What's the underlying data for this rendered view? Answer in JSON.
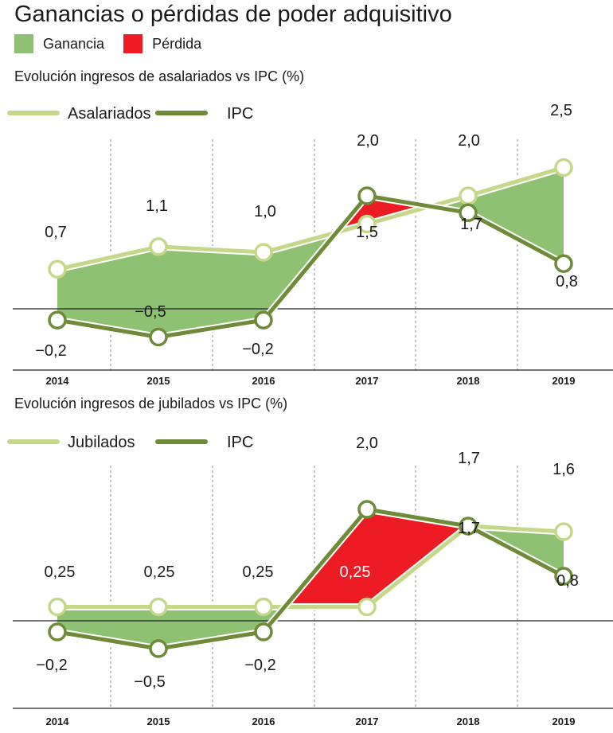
{
  "title": "Ganancias o pérdidas de poder adquisitivo",
  "legend": [
    {
      "label": "Ganancia",
      "color": "#8fc172"
    },
    {
      "label": "Pérdida",
      "color": "#ed1c24"
    }
  ],
  "colors": {
    "light_line": "#c5d88a",
    "dark_line": "#6f8a38",
    "gain": "#8fc172",
    "loss": "#ed1c24",
    "axis": "#222222",
    "grid": "#888888"
  },
  "chart_data": [
    {
      "type": "line",
      "title": "Evolución ingresos de asalariados vs IPC (%)",
      "x": [
        "2014",
        "2015",
        "2016",
        "2017",
        "2018",
        "2019"
      ],
      "series": [
        {
          "name": "Asalariados",
          "values": [
            0.7,
            1.1,
            1.0,
            1.5,
            2.0,
            2.5
          ],
          "labels": [
            "0,7",
            "1,1",
            "1,0",
            "1,5",
            "2,0",
            "2,5"
          ]
        },
        {
          "name": "IPC",
          "values": [
            -0.2,
            -0.5,
            -0.2,
            2.0,
            1.7,
            0.8
          ],
          "labels": [
            "−0,2",
            "−0,5",
            "−0,2",
            "2,0",
            "1,7",
            "0,8"
          ]
        }
      ],
      "ylim": [
        -1.0,
        3.0
      ],
      "fill": "ganancia where Asalariados > IPC, pérdida where IPC > Asalariados"
    },
    {
      "type": "line",
      "title": "Evolución ingresos de jubilados vs IPC (%)",
      "x": [
        "2014",
        "2015",
        "2016",
        "2017",
        "2018",
        "2019"
      ],
      "series": [
        {
          "name": "Jubilados",
          "values": [
            0.25,
            0.25,
            0.25,
            0.25,
            1.7,
            1.6
          ],
          "labels": [
            "0,25",
            "0,25",
            "0,25",
            "0,25",
            "1,7",
            "1,6"
          ]
        },
        {
          "name": "IPC",
          "values": [
            -0.2,
            -0.5,
            -0.2,
            2.0,
            1.7,
            0.8
          ],
          "labels": [
            "−0,2",
            "−0,5",
            "−0,2",
            "2,0",
            "1,7",
            "0,8"
          ]
        }
      ],
      "ylim": [
        -1.0,
        2.6
      ],
      "fill": "ganancia where Jubilados > IPC, pérdida where IPC > Jubilados"
    }
  ]
}
